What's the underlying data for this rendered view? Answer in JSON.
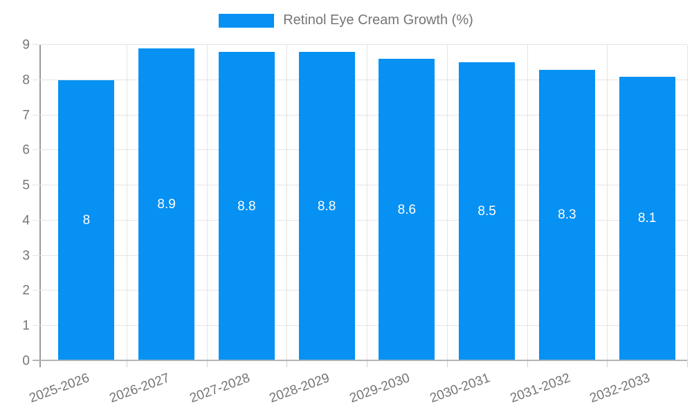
{
  "legend": {
    "label": "Retinol Eye Cream Growth (%)"
  },
  "colors": {
    "bar": "#0691f3",
    "bar_label_text": "#ffffff",
    "grid_line": "#e4e4e4",
    "axis_line": "#999999",
    "baseline": "#b3b3b3",
    "tick_mark": "#d0d0d0",
    "tick_label_text": "#757575",
    "legend_text": "#757575",
    "background": "#ffffff"
  },
  "chart_data": {
    "type": "bar",
    "title": "",
    "legend_entries": [
      "Retinol Eye Cream Growth (%)"
    ],
    "legend_position": "top",
    "categories": [
      "2025-2026",
      "2026-2027",
      "2027-2028",
      "2028-2029",
      "2029-2030",
      "2030-2031",
      "2031-2032",
      "2032-2033"
    ],
    "values": [
      8,
      8.9,
      8.8,
      8.8,
      8.6,
      8.5,
      8.3,
      8.1
    ],
    "bar_labels": [
      "8",
      "8.9",
      "8.8",
      "8.8",
      "8.6",
      "8.5",
      "8.3",
      "8.1"
    ],
    "xlabel": "",
    "ylabel": "",
    "ylim": [
      0,
      9
    ],
    "yticks": [
      0,
      1,
      2,
      3,
      4,
      5,
      6,
      7,
      8,
      9
    ],
    "grid": true,
    "x_label_rotation_deg": -20,
    "bar_width_fraction": 0.7
  }
}
